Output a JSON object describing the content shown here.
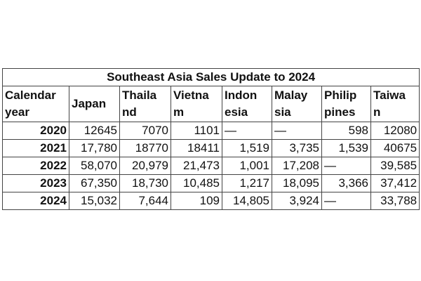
{
  "table": {
    "title": "Southeast Asia Sales Update to 2024",
    "header": [
      [
        "Calendar",
        "year"
      ],
      [
        "Japan"
      ],
      [
        "Thaila",
        "nd"
      ],
      [
        "Vietna",
        "m"
      ],
      [
        "Indon",
        "esia"
      ],
      [
        "Malay",
        "sia"
      ],
      [
        "Philip",
        "pines"
      ],
      [
        "Taiwa",
        "n"
      ]
    ],
    "rows": [
      [
        "2020",
        "12645",
        "7070",
        "1101",
        "—",
        "—",
        "598",
        "12080"
      ],
      [
        "2021",
        "17,780",
        "18770",
        "18411",
        "1,519",
        "3,735",
        "1,539",
        "40675"
      ],
      [
        "2022",
        "58,070",
        "20,979",
        "21,473",
        "1,001",
        "17,208",
        "—",
        "39,585"
      ],
      [
        "2023",
        "67,350",
        "18,730",
        "10,485",
        "1,217",
        "18,095",
        "3,366",
        "37,412"
      ],
      [
        "2024",
        "15,032",
        "7,644",
        "109",
        "14,805",
        "3,924",
        "—",
        "33,788"
      ]
    ]
  }
}
